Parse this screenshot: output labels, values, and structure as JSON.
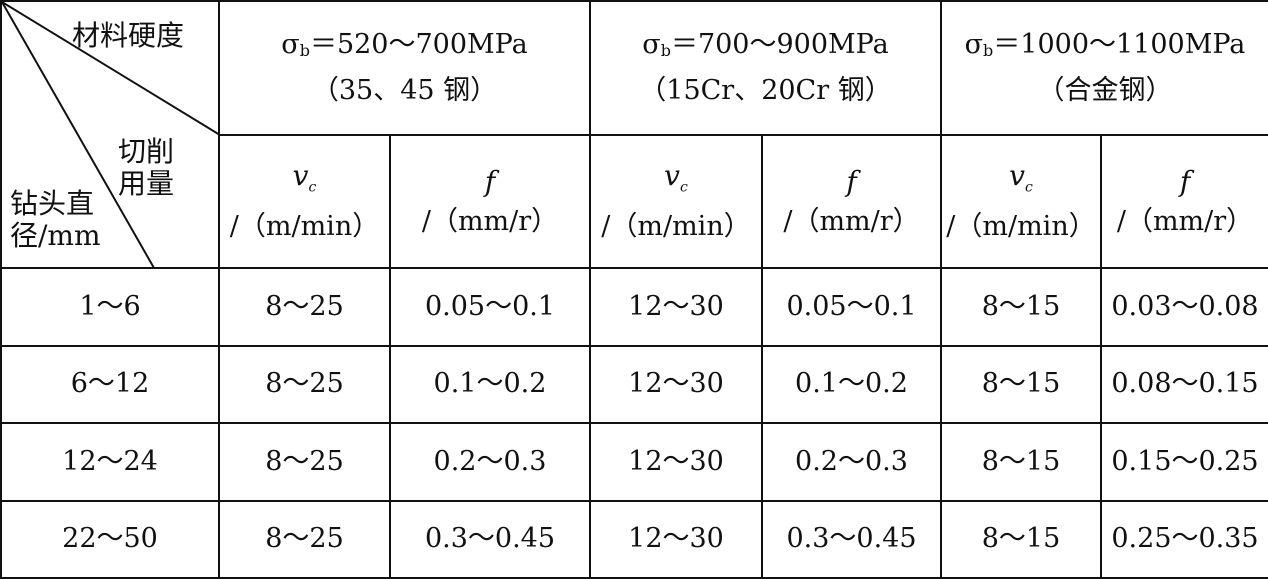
{
  "corner": {
    "hardness_label": "材料硬度",
    "cutting_label": "切削用量",
    "diameter_label": "钻头直径/mm"
  },
  "groups": [
    {
      "sigma": "σ",
      "sigma_sub": "b",
      "range": "＝520～700MPa",
      "material": "（35、45 钢）"
    },
    {
      "sigma": "σ",
      "sigma_sub": "b",
      "range": "＝700～900MPa",
      "material": "（15Cr、20Cr 钢）"
    },
    {
      "sigma": "σ",
      "sigma_sub": "b",
      "range": "＝1000～1100MPa",
      "material": "（合金钢）"
    }
  ],
  "subheaders": {
    "vc_symbol": "v",
    "vc_sub": "c",
    "vc_unit": "/（m/min）",
    "f_symbol": "f",
    "f_unit": "/（mm/r）"
  },
  "rows": [
    {
      "diameter": "1～6",
      "vc1": "8～25",
      "f1": "0.05～0.1",
      "vc2": "12～30",
      "f2": "0.05～0.1",
      "vc3": "8～15",
      "f3": "0.03～0.08"
    },
    {
      "diameter": "6～12",
      "vc1": "8～25",
      "f1": "0.1～0.2",
      "vc2": "12～30",
      "f2": "0.1～0.2",
      "vc3": "8～15",
      "f3": "0.08～0.15"
    },
    {
      "diameter": "12～24",
      "vc1": "8～25",
      "f1": "0.2～0.3",
      "vc2": "12～30",
      "f2": "0.2～0.3",
      "vc3": "8～15",
      "f3": "0.15～0.25"
    },
    {
      "diameter": "22～50",
      "vc1": "8～25",
      "f1": "0.3～0.45",
      "vc2": "12～30",
      "f2": "0.3～0.45",
      "vc3": "8～15",
      "f3": "0.25～0.35"
    }
  ]
}
